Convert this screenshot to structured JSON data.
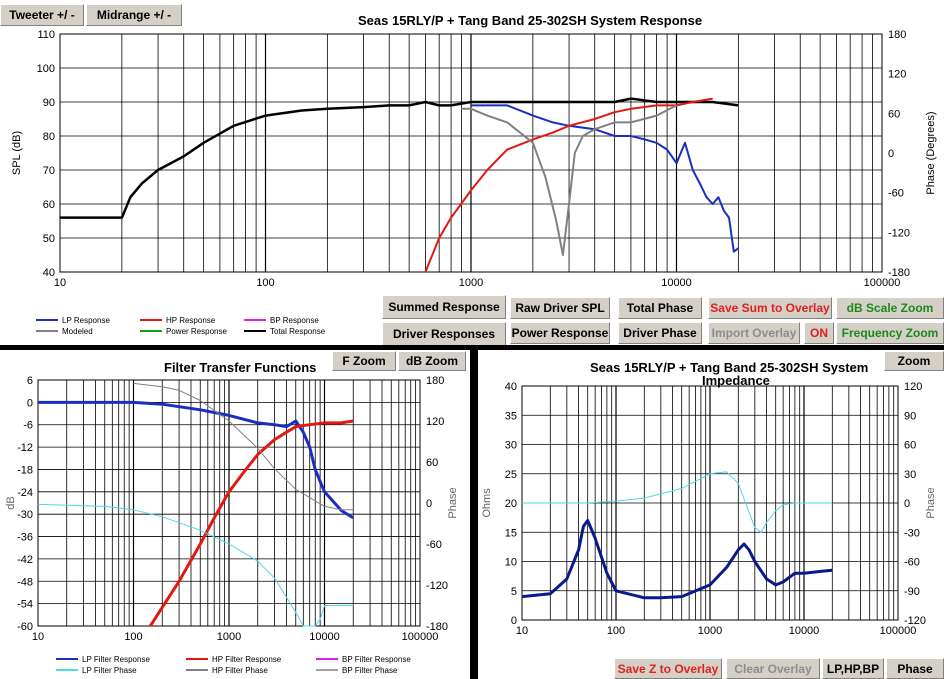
{
  "top_buttons": {
    "tweeter": "Tweeter +/ -",
    "midrange": "Midrange   +/ -"
  },
  "sys_title": "Seas 15RLY/P  + Tang Band 25-302SH     System Response",
  "sys_controls": {
    "summed": "Summed Response",
    "raw": "Raw Driver SPL",
    "total_phase": "Total Phase",
    "save_sum": "Save Sum to Overlay",
    "db_zoom": "dB Scale Zoom",
    "driver_resp": "Driver Responses",
    "power_resp": "Power Response",
    "driver_phase": "Driver Phase",
    "import_overlay": "Import Overlay",
    "on": "ON",
    "freq_zoom": "Frequency Zoom"
  },
  "filter_title": "Filter Transfer Functions",
  "filter_controls": {
    "f_zoom": "F Zoom",
    "db_zoom": "dB Zoom"
  },
  "imp_title": "Seas 15RLY/P  + Tang Band 25-302SH     System",
  "imp_subtitle": "Impedance",
  "imp_controls": {
    "zoom": "Zoom",
    "save_z": "Save Z to Overlay",
    "clear": "Clear Overlay",
    "lphpbp": "LP,HP,BP",
    "phase": "Phase"
  },
  "colors": {
    "lp": "#1a2fbf",
    "hp": "#e01a10",
    "bp": "#e020e0",
    "modeled": "#808080",
    "power": "#10a010",
    "total": "#000000",
    "phase": "#4fd8e8",
    "imp": "#0a1a8a"
  },
  "chart_data": [
    {
      "type": "line",
      "title": "Seas 15RLY/P  + Tang Band 25-302SH     System Response",
      "xlabel": "",
      "ylabel": "SPL (dB)",
      "y2label": "Phase (Degrees)",
      "xscale": "log",
      "xlim": [
        10,
        100000
      ],
      "ylim": [
        40,
        110
      ],
      "y2lim": [
        -180,
        180
      ],
      "xticks": [
        "10",
        "100",
        "1000",
        "10000",
        "100000"
      ],
      "yticks": [
        "40",
        "50",
        "60",
        "70",
        "80",
        "90",
        "100",
        "110"
      ],
      "y2ticks": [
        "-180",
        "-120",
        "-60",
        "0",
        "60",
        "120",
        "180"
      ],
      "legend": [
        "LP Response",
        "HP Response",
        "BP Response",
        "Modeled",
        "Power Response",
        "Total Response"
      ],
      "series": [
        {
          "name": "Total Response",
          "x": [
            10,
            20,
            22,
            25,
            30,
            40,
            50,
            70,
            100,
            150,
            200,
            300,
            400,
            500,
            600,
            700,
            800,
            1000,
            1200,
            1500,
            2000,
            3000,
            4000,
            5000,
            6000,
            8000,
            10000,
            12000,
            15000,
            20000
          ],
          "values": [
            56,
            56,
            62,
            66,
            70,
            74,
            78,
            83,
            86,
            87.5,
            88,
            88.5,
            89,
            89,
            90,
            89,
            89,
            90,
            90,
            90,
            90,
            90,
            90,
            90,
            91,
            90,
            90,
            90,
            90,
            89
          ]
        },
        {
          "name": "LP Response",
          "x": [
            1000,
            1500,
            2000,
            2500,
            3000,
            4000,
            5000,
            6000,
            7000,
            8000,
            9000,
            10000,
            11000,
            12000,
            13000,
            14000,
            15000,
            16000,
            17000,
            18000,
            19000,
            20000
          ],
          "values": [
            89,
            89,
            86,
            84,
            83,
            82,
            80,
            80,
            79,
            78,
            76,
            72,
            78,
            70,
            66,
            62,
            60,
            62,
            58,
            56,
            46,
            47
          ]
        },
        {
          "name": "HP Response",
          "x": [
            600,
            700,
            800,
            1000,
            1200,
            1500,
            2000,
            2500,
            3000,
            4000,
            5000,
            6000,
            8000,
            10000,
            12000,
            15000
          ],
          "values": [
            40,
            50,
            56,
            64,
            70,
            76,
            79,
            81,
            83,
            85,
            87,
            88,
            89,
            89,
            90,
            91
          ]
        },
        {
          "name": "Modeled",
          "x": [
            900,
            1000,
            1200,
            1500,
            2000,
            2300,
            2600,
            2800,
            3000,
            3200,
            3500,
            4000,
            5000,
            6000,
            8000,
            10000
          ],
          "values": [
            88,
            88,
            86,
            84,
            78,
            68,
            55,
            45,
            60,
            75,
            80,
            82,
            84,
            84,
            86,
            89
          ]
        }
      ]
    },
    {
      "type": "line",
      "title": "Filter Transfer Functions",
      "ylabel": "dB",
      "y2label": "Phase",
      "xscale": "log",
      "xlim": [
        10,
        100000
      ],
      "ylim": [
        -60,
        6
      ],
      "y2lim": [
        -180,
        180
      ],
      "xticks": [
        "10",
        "100",
        "1000",
        "10000",
        "100000"
      ],
      "yticks": [
        "6",
        "0",
        "-6",
        "-12",
        "-18",
        "-24",
        "-30",
        "-36",
        "-42",
        "-48",
        "-54",
        "-60"
      ],
      "y2ticks": [
        "180",
        "120",
        "60",
        "0",
        "-60",
        "-120",
        "-180"
      ],
      "legend": [
        "LP Filter Response",
        "HP Filter Response",
        "BP Filter Response",
        "LP Filter Phase",
        "HP Filter Phase",
        "BP Filter Phase"
      ],
      "series": [
        {
          "name": "LP Filter Response",
          "x": [
            10,
            100,
            200,
            500,
            1000,
            2000,
            3000,
            4000,
            5000,
            6000,
            7000,
            8000,
            10000,
            15000,
            20000
          ],
          "values": [
            0,
            0,
            -0.5,
            -2,
            -3.5,
            -5.5,
            -6,
            -6.5,
            -5,
            -8,
            -12,
            -18,
            -24,
            -29,
            -31
          ]
        },
        {
          "name": "HP Filter Response",
          "x": [
            150,
            200,
            300,
            500,
            700,
            1000,
            1500,
            2000,
            3000,
            4000,
            5000,
            7000,
            10000,
            15000,
            20000
          ],
          "values": [
            -60,
            -55,
            -48,
            -38,
            -31,
            -24,
            -18,
            -14,
            -10,
            -8,
            -6.5,
            -6,
            -5.5,
            -5.5,
            -5
          ]
        },
        {
          "name": "LP Filter Phase",
          "x": [
            10,
            50,
            100,
            200,
            500,
            1000,
            2000,
            3000,
            5000,
            6000,
            7000,
            8000,
            9000,
            10000,
            15000,
            20000
          ],
          "values": [
            -2,
            -5,
            -10,
            -20,
            -40,
            -60,
            -85,
            -110,
            -160,
            -180,
            -180,
            -180,
            -170,
            -150,
            -150,
            -150
          ]
        },
        {
          "name": "HP Filter Phase",
          "x": [
            100,
            200,
            300,
            500,
            1000,
            2000,
            3000,
            5000,
            10000,
            15000,
            20000
          ],
          "values": [
            175,
            170,
            165,
            150,
            120,
            80,
            50,
            20,
            -5,
            -10,
            -10
          ]
        }
      ]
    },
    {
      "type": "line",
      "title": "Seas 15RLY/P  + Tang Band 25-302SH     System Impedance",
      "ylabel": "Ohms",
      "y2label": "Phase",
      "xscale": "log",
      "xlim": [
        10,
        100000
      ],
      "ylim": [
        0,
        40
      ],
      "y2lim": [
        -120,
        120
      ],
      "xticks": [
        "10",
        "100",
        "1000",
        "10000",
        "100000"
      ],
      "yticks": [
        "0",
        "5",
        "10",
        "15",
        "20",
        "25",
        "30",
        "35",
        "40"
      ],
      "y2ticks": [
        "-120",
        "-90",
        "-60",
        "-30",
        "0",
        "30",
        "60",
        "90",
        "120"
      ],
      "series": [
        {
          "name": "Impedance",
          "x": [
            10,
            20,
            30,
            40,
            45,
            50,
            60,
            80,
            100,
            200,
            300,
            500,
            1000,
            1500,
            2000,
            2300,
            2600,
            3000,
            4000,
            5000,
            6000,
            8000,
            10000,
            15000,
            20000
          ],
          "values": [
            4,
            4.5,
            7,
            12,
            16,
            17,
            14,
            8,
            5,
            3.8,
            3.8,
            4,
            6,
            9,
            12,
            13,
            12,
            10,
            7,
            6,
            6.5,
            8,
            8,
            8.3,
            8.5
          ]
        },
        {
          "name": "Phase",
          "x": [
            10,
            50,
            100,
            200,
            500,
            1000,
            1500,
            2000,
            2500,
            3000,
            3500,
            4000,
            5000,
            6000,
            8000,
            10000,
            15000,
            20000
          ],
          "values": [
            0,
            0,
            2,
            5,
            15,
            30,
            32,
            20,
            -5,
            -25,
            -30,
            -20,
            -8,
            -2,
            0,
            0,
            0,
            0
          ]
        }
      ]
    }
  ]
}
